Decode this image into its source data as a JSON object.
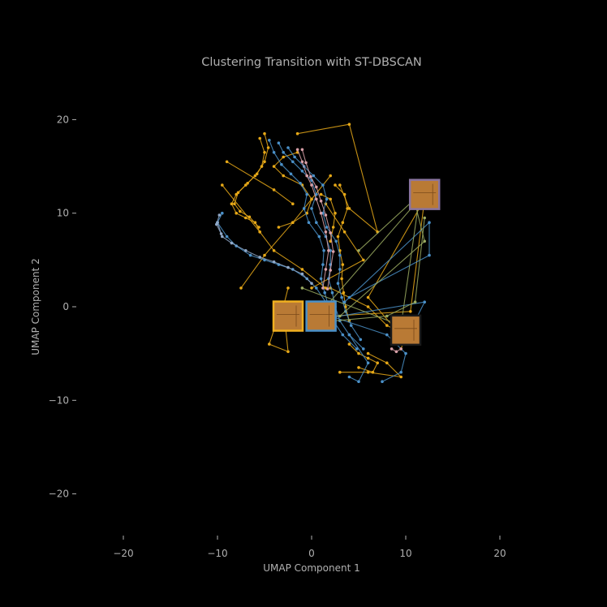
{
  "chart_data": {
    "type": "line",
    "title": "Clustering Transition with ST-DBSCAN",
    "xlabel": "UMAP Component 1",
    "ylabel": "UMAP Component 2",
    "xlim": [
      -25,
      30
    ],
    "ylim": [
      -25,
      25
    ],
    "xticks": [
      -20,
      -10,
      0,
      10,
      20
    ],
    "xtick_labels": [
      "−20",
      "−10",
      "0",
      "10",
      "20"
    ],
    "yticks": [
      -20,
      -10,
      0,
      10,
      20
    ],
    "ytick_labels": [
      "−20",
      "−10",
      "0",
      "10",
      "20"
    ],
    "grid": false,
    "background": "#000000",
    "text_color": "#b0b0b0",
    "series": [
      {
        "color": "#e6a817",
        "segments": [
          [
            [
              -5.5,
              18.0
            ],
            [
              -5.0,
              16.5
            ],
            [
              -5.3,
              15.0
            ],
            [
              -6.0,
              14.0
            ],
            [
              -7.0,
              13.0
            ],
            [
              -8.0,
              12.0
            ],
            [
              -8.5,
              11.0
            ],
            [
              -8.0,
              10.0
            ],
            [
              -7.0,
              9.5
            ],
            [
              -6.0,
              9.0
            ],
            [
              -5.5,
              8.0
            ]
          ],
          [
            [
              -5.0,
              18.5
            ],
            [
              -4.6,
              17.0
            ],
            [
              -5.0,
              15.5
            ],
            [
              -5.8,
              14.2
            ],
            [
              -6.8,
              13.2
            ],
            [
              -7.8,
              12.2
            ],
            [
              -8.2,
              11.0
            ],
            [
              -7.6,
              10.2
            ],
            [
              -6.6,
              9.6
            ],
            [
              -5.6,
              8.5
            ]
          ],
          [
            [
              2.5,
              13.0
            ],
            [
              3.5,
              12.0
            ],
            [
              3.8,
              10.5
            ],
            [
              3.3,
              9.0
            ],
            [
              2.8,
              7.5
            ],
            [
              3.0,
              6.0
            ],
            [
              3.3,
              4.5
            ],
            [
              3.2,
              3.0
            ],
            [
              3.4,
              1.5
            ],
            [
              3.6,
              0.0
            ],
            [
              4.0,
              -1.5
            ]
          ],
          [
            [
              1.0,
              12.0
            ],
            [
              2.0,
              11.5
            ],
            [
              2.5,
              10.0
            ],
            [
              2.3,
              8.5
            ],
            [
              2.0,
              7.0
            ]
          ],
          [
            [
              4.0,
              -4.0
            ],
            [
              5.0,
              -5.0
            ],
            [
              6.0,
              -5.5
            ],
            [
              7.0,
              -6.0
            ],
            [
              6.5,
              -7.0
            ],
            [
              5.0,
              -6.5
            ]
          ],
          [
            [
              -1.5,
              16.5
            ],
            [
              -3.0,
              16.0
            ],
            [
              -4.0,
              15.0
            ],
            [
              -3.0,
              14.0
            ],
            [
              -1.0,
              13.0
            ],
            [
              0.0,
              11.5
            ],
            [
              -0.5,
              10.0
            ],
            [
              -2.0,
              9.0
            ],
            [
              -3.5,
              8.5
            ]
          ],
          [
            [
              -1.5,
              18.5
            ],
            [
              4.0,
              19.5
            ],
            [
              7.0,
              8.0
            ],
            [
              4.0,
              10.5
            ],
            [
              3.0,
              13.0
            ]
          ],
          [
            [
              -9.0,
              15.5
            ],
            [
              -4.0,
              12.5
            ],
            [
              -2.0,
              11.0
            ]
          ],
          [
            [
              -9.5,
              13.0
            ],
            [
              -5.5,
              8.0
            ],
            [
              -4.0,
              6.0
            ],
            [
              -1.0,
              4.0
            ],
            [
              1.5,
              2.0
            ]
          ],
          [
            [
              -7.5,
              2.0
            ],
            [
              -5.0,
              5.5
            ],
            [
              -2.0,
              9.0
            ],
            [
              0.0,
              11.5
            ],
            [
              2.0,
              14.0
            ]
          ],
          [
            [
              -3.5,
              -1.0
            ],
            [
              -4.5,
              -4.0
            ],
            [
              -2.5,
              -4.8
            ],
            [
              -3.0,
              0.0
            ],
            [
              -2.5,
              2.0
            ]
          ],
          [
            [
              3.0,
              -7.0
            ],
            [
              6.0,
              -7.0
            ],
            [
              9.5,
              -7.5
            ],
            [
              8.0,
              -6.0
            ],
            [
              6.0,
              -5.0
            ]
          ],
          [
            [
              0.0,
              2.0
            ],
            [
              5.5,
              5.0
            ],
            [
              3.5,
              8.0
            ],
            [
              1.5,
              11.0
            ]
          ],
          [
            [
              2.0,
              -1.0
            ],
            [
              10.5,
              -0.5
            ],
            [
              12.0,
              11.5
            ],
            [
              6.0,
              1.0
            ],
            [
              9.0,
              -2.5
            ]
          ],
          [
            [
              2.0,
              2.0
            ],
            [
              6.0,
              0.0
            ],
            [
              8.0,
              -2.0
            ],
            [
              10.0,
              -3.0
            ],
            [
              9.5,
              -4.5
            ]
          ]
        ]
      },
      {
        "color": "#4a90c8",
        "segments": [
          [
            [
              -3.5,
              17.5
            ],
            [
              -3.0,
              16.5
            ],
            [
              -2.0,
              15.5
            ],
            [
              -1.0,
              14.5
            ],
            [
              0.0,
              13.5
            ],
            [
              0.5,
              12.0
            ],
            [
              0.0,
              10.5
            ],
            [
              0.5,
              9.0
            ],
            [
              1.5,
              7.5
            ],
            [
              2.0,
              6.0
            ],
            [
              2.0,
              4.5
            ],
            [
              1.8,
              3.0
            ],
            [
              2.2,
              1.5
            ],
            [
              2.5,
              0.0
            ],
            [
              3.0,
              -1.5
            ],
            [
              4.0,
              -3.0
            ],
            [
              5.5,
              -4.5
            ]
          ],
          [
            [
              -4.5,
              17.8
            ],
            [
              -4.0,
              16.5
            ],
            [
              -3.2,
              15.2
            ],
            [
              -2.2,
              14.2
            ],
            [
              -1.2,
              13.2
            ],
            [
              -0.5,
              12.0
            ],
            [
              -0.8,
              10.5
            ],
            [
              -0.3,
              9.0
            ],
            [
              0.8,
              7.5
            ],
            [
              1.3,
              6.0
            ],
            [
              1.2,
              4.5
            ],
            [
              1.0,
              3.0
            ],
            [
              1.4,
              1.5
            ],
            [
              1.8,
              0.0
            ],
            [
              2.3,
              -1.5
            ],
            [
              3.3,
              -3.0
            ],
            [
              4.8,
              -4.5
            ]
          ],
          [
            [
              -2.5,
              17.0
            ],
            [
              -1.8,
              16.0
            ],
            [
              -0.8,
              15.0
            ],
            [
              0.2,
              14.0
            ],
            [
              1.2,
              13.0
            ],
            [
              1.6,
              11.5
            ],
            [
              1.2,
              10.0
            ],
            [
              1.6,
              8.5
            ],
            [
              2.6,
              7.0
            ],
            [
              3.0,
              5.5
            ],
            [
              3.0,
              4.0
            ],
            [
              2.8,
              2.5
            ],
            [
              3.2,
              1.0
            ],
            [
              3.6,
              -0.5
            ],
            [
              4.2,
              -2.0
            ],
            [
              5.2,
              -3.5
            ]
          ],
          [
            [
              -10.0,
              9.0
            ],
            [
              -9.0,
              7.5
            ],
            [
              -8.0,
              6.5
            ],
            [
              -6.5,
              5.5
            ],
            [
              -5.0,
              5.0
            ],
            [
              -3.5,
              4.5
            ],
            [
              -2.0,
              4.0
            ],
            [
              -0.5,
              3.0
            ],
            [
              0.5,
              2.0
            ],
            [
              1.5,
              0.5
            ]
          ],
          [
            [
              -9.5,
              10.0
            ],
            [
              -10.0,
              9.0
            ]
          ],
          [
            [
              3.5,
              0.5
            ],
            [
              12.5,
              9.0
            ],
            [
              12.5,
              5.5
            ],
            [
              4.0,
              1.0
            ]
          ],
          [
            [
              2.0,
              -1.0
            ],
            [
              8.0,
              -3.0
            ],
            [
              10.0,
              -5.0
            ],
            [
              9.5,
              -7.0
            ],
            [
              7.5,
              -8.0
            ]
          ],
          [
            [
              4.0,
              -3.0
            ],
            [
              6.0,
              -6.0
            ],
            [
              5.0,
              -8.0
            ],
            [
              4.0,
              -7.5
            ]
          ],
          [
            [
              0.0,
              -1.5
            ],
            [
              12.0,
              0.5
            ],
            [
              10.0,
              -3.5
            ]
          ]
        ]
      },
      {
        "color": "#8fa8c8",
        "segments": [
          [
            [
              -10.0,
              9.0
            ],
            [
              -9.5,
              7.5
            ],
            [
              -8.5,
              6.8
            ],
            [
              -7.0,
              6.0
            ],
            [
              -5.5,
              5.3
            ],
            [
              -4.0,
              4.8
            ],
            [
              -2.5,
              4.2
            ],
            [
              -1.0,
              3.5
            ],
            [
              0.0,
              2.5
            ]
          ],
          [
            [
              -9.8,
              9.8
            ],
            [
              -10.1,
              8.8
            ],
            [
              -9.6,
              7.8
            ]
          ]
        ]
      },
      {
        "color": "#d8a0a8",
        "segments": [
          [
            [
              -1.5,
              16.8
            ],
            [
              -1.0,
              15.5
            ],
            [
              -0.5,
              14.0
            ],
            [
              0.0,
              13.0
            ],
            [
              0.5,
              11.5
            ],
            [
              1.0,
              10.0
            ],
            [
              1.5,
              8.0
            ],
            [
              1.8,
              6.0
            ],
            [
              1.5,
              4.0
            ],
            [
              1.2,
              2.0
            ]
          ],
          [
            [
              -1.0,
              16.8
            ],
            [
              -0.6,
              15.4
            ],
            [
              -0.1,
              13.9
            ],
            [
              0.5,
              12.8
            ],
            [
              1.0,
              11.3
            ],
            [
              1.5,
              9.8
            ],
            [
              2.0,
              7.9
            ],
            [
              2.3,
              5.9
            ],
            [
              2.0,
              3.9
            ],
            [
              1.7,
              1.9
            ]
          ],
          [
            [
              8.5,
              -4.5
            ],
            [
              9.0,
              -4.8
            ],
            [
              9.5,
              -4.5
            ]
          ]
        ]
      },
      {
        "color": "#9aaa60",
        "segments": [
          [
            [
              1.5,
              0.0
            ],
            [
              11.0,
              11.0
            ],
            [
              12.0,
              7.0
            ],
            [
              3.0,
              -1.0
            ]
          ],
          [
            [
              -1.0,
              2.0
            ],
            [
              9.5,
              -2.0
            ],
            [
              11.5,
              12.0
            ],
            [
              5.0,
              6.0
            ]
          ],
          [
            [
              2.5,
              -1.5
            ],
            [
              8.0,
              -1.0
            ],
            [
              11.0,
              0.5
            ],
            [
              12.0,
              9.5
            ]
          ]
        ]
      }
    ],
    "insets": [
      {
        "center": [
          -2.5,
          -1.0
        ],
        "border": "#f0b020",
        "fill": "#b97a35"
      },
      {
        "center": [
          1.0,
          -1.0
        ],
        "border": "#4a90c8",
        "fill": "#b97a35"
      },
      {
        "center": [
          12.0,
          12.0
        ],
        "border": "#8a74a0",
        "fill": "#b97a35"
      },
      {
        "center": [
          10.0,
          -2.5
        ],
        "border": "#1a1a1a",
        "fill": "#b97a35"
      }
    ]
  }
}
